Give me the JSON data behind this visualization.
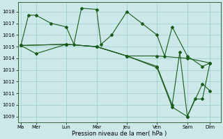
{
  "xlabel": "Pression niveau de la mer( hPa )",
  "background_color": "#cce8e8",
  "grid_color": "#99cccc",
  "line_color": "#1a5c1a",
  "xtick_labels": [
    "Ma",
    "Mer",
    "Lun",
    "Mar",
    "Jeu",
    "Ven",
    "Sam",
    "Dim"
  ],
  "xtick_positions": [
    0,
    1,
    3,
    5,
    7,
    9,
    11,
    12.5
  ],
  "ylim": [
    1008.5,
    1018.8
  ],
  "yticks": [
    1009,
    1010,
    1011,
    1012,
    1013,
    1014,
    1015,
    1016,
    1017,
    1018
  ],
  "xlim": [
    -0.2,
    13.2
  ],
  "series1": {
    "x": [
      0,
      0.5,
      1,
      2,
      3,
      3.5,
      4,
      5,
      5.3,
      6,
      7,
      8,
      9,
      9.5,
      10,
      11,
      12,
      12.5
    ],
    "y": [
      1015.1,
      1017.7,
      1017.7,
      1017.0,
      1016.7,
      1015.2,
      1018.3,
      1018.2,
      1015.2,
      1016.0,
      1018.0,
      1017.0,
      1016.0,
      1014.2,
      1016.7,
      1014.2,
      1013.3,
      1013.6
    ]
  },
  "series2": {
    "x": [
      0,
      1,
      3,
      5,
      7,
      9,
      11,
      12.5
    ],
    "y": [
      1015.1,
      1014.4,
      1015.2,
      1015.0,
      1014.2,
      1014.2,
      1014.0,
      1013.6
    ]
  },
  "series3": {
    "x": [
      0,
      3,
      5,
      7,
      9,
      10,
      11,
      12,
      12.5
    ],
    "y": [
      1015.1,
      1015.2,
      1015.0,
      1014.2,
      1013.2,
      1009.8,
      1009.0,
      1011.8,
      1011.2
    ]
  },
  "series4": {
    "x": [
      0,
      3,
      5,
      7,
      9,
      10,
      10.5,
      11,
      11.5,
      12,
      12.5
    ],
    "y": [
      1015.1,
      1015.2,
      1015.0,
      1014.2,
      1013.3,
      1010.0,
      1014.5,
      1009.0,
      1010.5,
      1010.5,
      1013.6
    ]
  }
}
